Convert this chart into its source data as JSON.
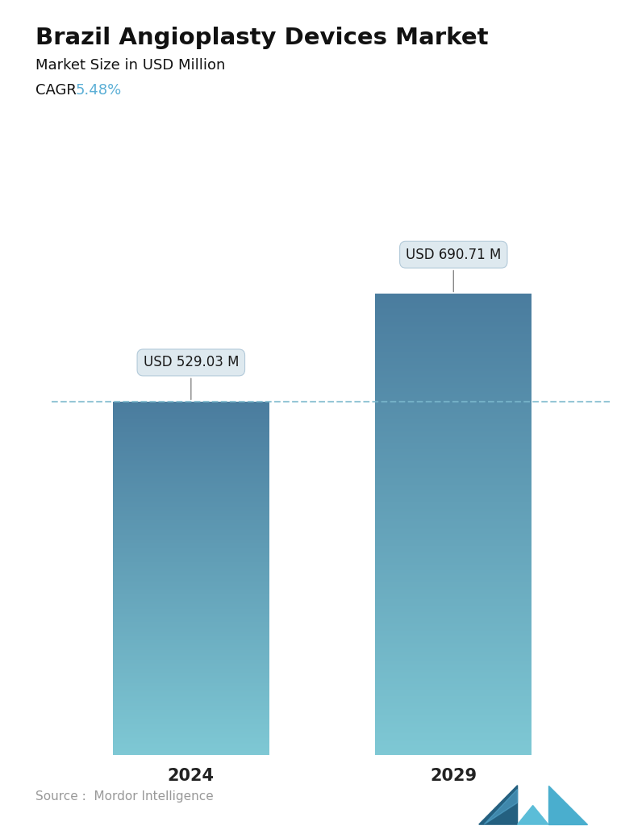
{
  "title": "Brazil Angioplasty Devices Market",
  "subtitle": "Market Size in USD Million",
  "cagr_label": "CAGR ",
  "cagr_value": "5.48%",
  "cagr_color": "#5bafd6",
  "categories": [
    "2024",
    "2029"
  ],
  "values": [
    529.03,
    690.71
  ],
  "labels": [
    "USD 529.03 M",
    "USD 690.71 M"
  ],
  "bar_color_top": "#4a7c9e",
  "bar_color_bottom": "#7ec8d4",
  "dashed_line_color": "#7bb8cc",
  "source_text": "Source :  Mordor Intelligence",
  "source_color": "#999999",
  "background_color": "#ffffff",
  "title_fontsize": 21,
  "subtitle_fontsize": 13,
  "cagr_fontsize": 13,
  "tick_fontsize": 15,
  "label_fontsize": 12,
  "ylim": [
    0,
    800
  ]
}
